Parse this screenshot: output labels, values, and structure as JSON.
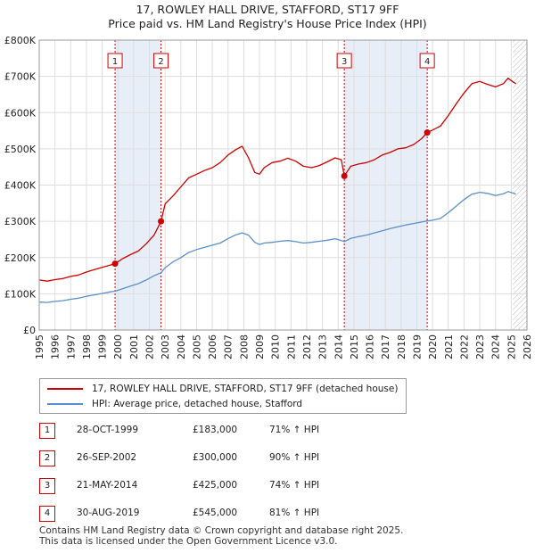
{
  "title_line1": "17, ROWLEY HALL DRIVE, STAFFORD, ST17 9FF",
  "title_line2": "Price paid vs. HM Land Registry's House Price Index (HPI)",
  "legend": {
    "property": "17, ROWLEY HALL DRIVE, STAFFORD, ST17 9FF (detached house)",
    "hpi": "HPI: Average price, detached house, Stafford"
  },
  "colors": {
    "property": "#cc0000",
    "hpi": "#5b8fc9",
    "band": "#e8eef8",
    "grid": "#dddddd"
  },
  "sales": [
    {
      "num": "1",
      "date": "28-OCT-1999",
      "price": "£183,000",
      "hpi": "71% ↑ HPI"
    },
    {
      "num": "2",
      "date": "26-SEP-2002",
      "price": "£300,000",
      "hpi": "90% ↑ HPI"
    },
    {
      "num": "3",
      "date": "21-MAY-2014",
      "price": "£425,000",
      "hpi": "74% ↑ HPI"
    },
    {
      "num": "4",
      "date": "30-AUG-2019",
      "price": "£545,000",
      "hpi": "81% ↑ HPI"
    }
  ],
  "footer": {
    "line1": "Contains HM Land Registry data © Crown copyright and database right 2025.",
    "line2": "This data is licensed under the Open Government Licence v3.0."
  },
  "chart_data": {
    "type": "line",
    "title": "17, ROWLEY HALL DRIVE, STAFFORD, ST17 9FF",
    "subtitle": "Price paid vs. HM Land Registry's House Price Index (HPI)",
    "xlim": [
      1995,
      2026
    ],
    "ylim": [
      0,
      800000
    ],
    "x_ticks": [
      "1995",
      "1996",
      "1997",
      "1998",
      "1999",
      "2000",
      "2001",
      "2002",
      "2003",
      "2004",
      "2005",
      "2006",
      "2007",
      "2008",
      "2009",
      "2010",
      "2011",
      "2012",
      "2013",
      "2014",
      "2015",
      "2016",
      "2017",
      "2018",
      "2019",
      "2020",
      "2021",
      "2022",
      "2023",
      "2024",
      "2025",
      "2026"
    ],
    "y_ticks": [
      {
        "value": 0,
        "label": "£0"
      },
      {
        "value": 100000,
        "label": "£100K"
      },
      {
        "value": 200000,
        "label": "£200K"
      },
      {
        "value": 300000,
        "label": "£300K"
      },
      {
        "value": 400000,
        "label": "£400K"
      },
      {
        "value": 500000,
        "label": "£500K"
      },
      {
        "value": 600000,
        "label": "£600K"
      },
      {
        "value": 700000,
        "label": "£700K"
      },
      {
        "value": 800000,
        "label": "£800K"
      }
    ],
    "shaded_ranges": [
      [
        1999.82,
        2002.74
      ],
      [
        2014.39,
        2019.66
      ]
    ],
    "future_hatch_from": 2025.1,
    "sale_markers": [
      {
        "label": "1",
        "x": 1999.82,
        "y": 183000
      },
      {
        "label": "2",
        "x": 2002.74,
        "y": 300000
      },
      {
        "label": "3",
        "x": 2014.39,
        "y": 425000
      },
      {
        "label": "4",
        "x": 2019.66,
        "y": 545000
      }
    ],
    "series": [
      {
        "name": "17, ROWLEY HALL DRIVE, STAFFORD, ST17 9FF (detached house)",
        "x": [
          1995.0,
          1995.5,
          1996.0,
          1996.5,
          1997.0,
          1997.5,
          1998.0,
          1998.5,
          1999.0,
          1999.5,
          1999.82,
          2000.3,
          2000.8,
          2001.3,
          2001.8,
          2002.3,
          2002.74,
          2003.0,
          2003.5,
          2004.0,
          2004.5,
          2005.0,
          2005.5,
          2006.0,
          2006.5,
          2007.0,
          2007.5,
          2007.9,
          2008.3,
          2008.7,
          2009.0,
          2009.3,
          2009.8,
          2010.3,
          2010.8,
          2011.3,
          2011.8,
          2012.3,
          2012.8,
          2013.3,
          2013.8,
          2014.2,
          2014.39,
          2014.8,
          2015.3,
          2015.8,
          2016.3,
          2016.8,
          2017.3,
          2017.8,
          2018.3,
          2018.8,
          2019.3,
          2019.66,
          2020.0,
          2020.5,
          2021.0,
          2021.5,
          2022.0,
          2022.5,
          2023.0,
          2023.5,
          2024.0,
          2024.5,
          2024.8,
          2025.1,
          2025.3
        ],
        "y": [
          138000,
          135000,
          139000,
          142000,
          148000,
          152000,
          160000,
          167000,
          173000,
          179000,
          183000,
          197000,
          208000,
          218000,
          238000,
          262000,
          300000,
          348000,
          370000,
          395000,
          420000,
          430000,
          440000,
          448000,
          462000,
          483000,
          498000,
          507000,
          475000,
          435000,
          430000,
          448000,
          462000,
          466000,
          474000,
          466000,
          452000,
          448000,
          454000,
          464000,
          475000,
          470000,
          425000,
          452000,
          458000,
          462000,
          470000,
          483000,
          490000,
          500000,
          503000,
          512000,
          528000,
          545000,
          552000,
          563000,
          592000,
          624000,
          654000,
          680000,
          686000,
          678000,
          671000,
          680000,
          695000,
          685000,
          680000
        ]
      },
      {
        "name": "HPI: Average price, detached house, Stafford",
        "x": [
          1995.0,
          1995.5,
          1996.0,
          1996.5,
          1997.0,
          1997.5,
          1998.0,
          1998.5,
          1999.0,
          1999.5,
          1999.82,
          2000.3,
          2000.8,
          2001.3,
          2001.8,
          2002.3,
          2002.74,
          2003.0,
          2003.5,
          2004.0,
          2004.5,
          2005.0,
          2005.5,
          2006.0,
          2006.5,
          2007.0,
          2007.5,
          2007.9,
          2008.3,
          2008.7,
          2009.0,
          2009.3,
          2009.8,
          2010.3,
          2010.8,
          2011.3,
          2011.8,
          2012.3,
          2012.8,
          2013.3,
          2013.8,
          2014.2,
          2014.39,
          2014.8,
          2015.3,
          2015.8,
          2016.3,
          2016.8,
          2017.3,
          2017.8,
          2018.3,
          2018.8,
          2019.3,
          2019.66,
          2020.0,
          2020.5,
          2021.0,
          2021.5,
          2022.0,
          2022.5,
          2023.0,
          2023.5,
          2024.0,
          2024.5,
          2024.8,
          2025.1,
          2025.3
        ],
        "y": [
          77000,
          76000,
          79000,
          81000,
          85000,
          88000,
          93000,
          97000,
          101000,
          105000,
          107000,
          114000,
          121000,
          128000,
          138000,
          150000,
          158000,
          172000,
          188000,
          200000,
          214000,
          222000,
          228000,
          234000,
          240000,
          252000,
          263000,
          268000,
          262000,
          242000,
          236000,
          240000,
          242000,
          245000,
          247000,
          244000,
          240000,
          242000,
          245000,
          248000,
          252000,
          247000,
          244000,
          253000,
          258000,
          262000,
          268000,
          274000,
          280000,
          285000,
          290000,
          294000,
          298000,
          301000,
          303000,
          308000,
          324000,
          342000,
          360000,
          375000,
          380000,
          377000,
          371000,
          376000,
          382000,
          378000,
          375000
        ]
      }
    ]
  }
}
